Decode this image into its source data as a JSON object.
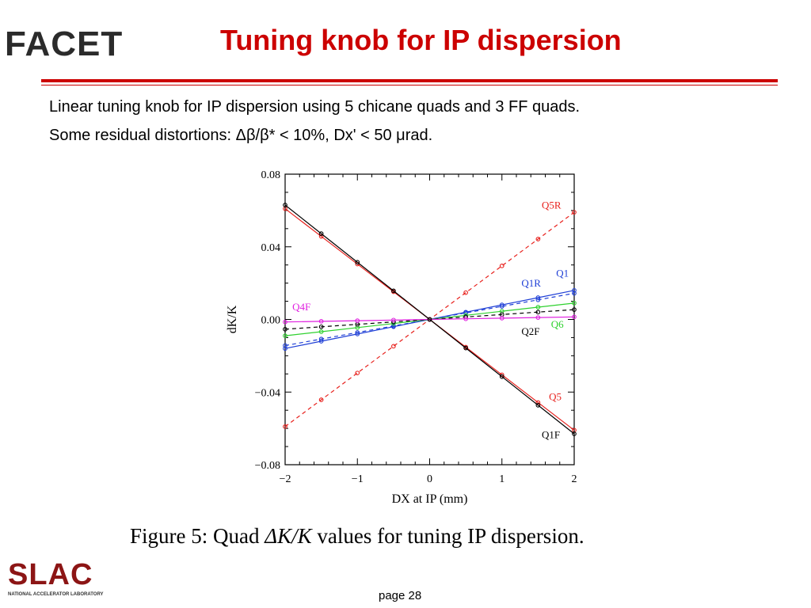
{
  "header": {
    "logo_text": "FACET",
    "title": "Tuning knob for IP dispersion"
  },
  "body": {
    "line1": "Linear tuning knob for IP dispersion using 5 chicane quads and 3 FF quads.",
    "line2_prefix": "Some residual distortions: ",
    "line2_symbols": "Δβ/β*",
    "line2_suffix": " < 10%, Dx' < 50 μrad."
  },
  "caption": {
    "prefix": "Figure 5: Quad ",
    "math": "ΔK/K",
    "suffix": " values for tuning IP dispersion."
  },
  "footer": {
    "logo_text": "SLAC",
    "logo_subtitle": "NATIONAL ACCELERATOR LABORATORY",
    "page": "page 28"
  },
  "chart_data": {
    "type": "line",
    "xlabel": "DX at IP (mm)",
    "ylabel": "dK/K",
    "xlim": [
      -2,
      2
    ],
    "ylim": [
      -0.08,
      0.08
    ],
    "xticks": [
      -2,
      -1,
      0,
      1,
      2
    ],
    "xtick_labels": [
      "−2",
      "−1",
      "0",
      "1",
      "2"
    ],
    "yticks": [
      0.08,
      0.04,
      0.0,
      -0.04,
      -0.08
    ],
    "ytick_labels": [
      "0.08",
      "0.04",
      "0.00",
      "−0.04",
      "−0.08"
    ],
    "x": [
      -2,
      -1.5,
      -1,
      -0.5,
      0,
      0.5,
      1,
      1.5,
      2
    ],
    "series": [
      {
        "name": "Q5R",
        "color": "#e8211d",
        "dash": true,
        "slope": 0.0295,
        "label_pos": [
          1.55,
          0.061
        ]
      },
      {
        "name": "Q1",
        "color": "#1f3fd6",
        "dash": false,
        "slope": 0.008,
        "label_pos": [
          1.75,
          0.0235
        ]
      },
      {
        "name": "Q1R",
        "color": "#1f3fd6",
        "dash": true,
        "slope": 0.0072,
        "label_pos": [
          1.27,
          0.018
        ]
      },
      {
        "name": "Q6",
        "color": "#2fd12f",
        "dash": false,
        "slope": 0.0045,
        "label_pos": [
          1.68,
          -0.0045
        ]
      },
      {
        "name": "Q2F",
        "color": "#000000",
        "dash": true,
        "slope": 0.0027,
        "label_pos": [
          1.27,
          -0.0085
        ]
      },
      {
        "name": "Q4F",
        "color": "#e020e0",
        "dash": false,
        "slope": 0.0007,
        "label_pos": [
          -1.9,
          0.005
        ]
      },
      {
        "name": "Q5",
        "color": "#e8211d",
        "dash": false,
        "slope": -0.0305,
        "label_pos": [
          1.65,
          -0.0445
        ]
      },
      {
        "name": "Q1F",
        "color": "#000000",
        "dash": false,
        "slope": -0.0315,
        "label_pos": [
          1.55,
          -0.0655
        ]
      }
    ]
  }
}
